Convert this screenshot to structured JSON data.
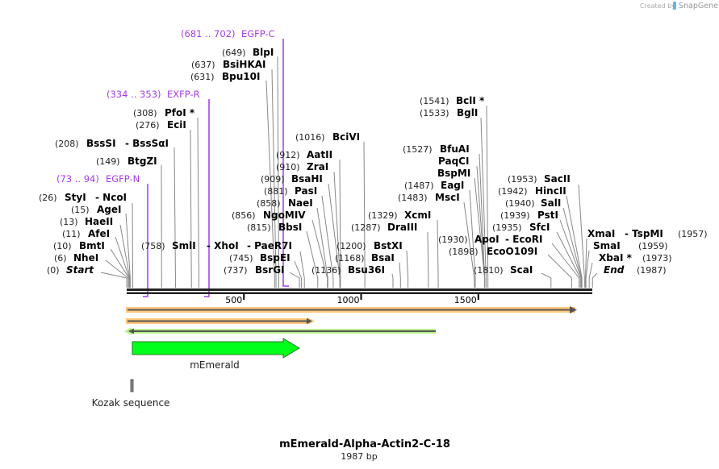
{
  "branding": {
    "created_by": "Created by",
    "brand": "SnapGene"
  },
  "title": "mEmerald-Alpha-Actin2-C-18",
  "length_label": "1987 bp",
  "length_bp": 1987,
  "ruler_ticks": [
    "500",
    "1000",
    "1500"
  ],
  "colors": {
    "primer": "#a43de6",
    "feature_green": "#00ff1a",
    "orange": "#ffc77a",
    "light_green": "#b8f08a",
    "backbone": "#222222"
  },
  "primers": [
    {
      "range": "(73 .. 94)",
      "name": "EGFP-N",
      "start": 73,
      "end": 94
    },
    {
      "range": "(334 .. 353)",
      "name": "EXFP-R",
      "start": 334,
      "end": 353
    },
    {
      "range": "(681 .. 702)",
      "name": "EGFP-C",
      "start": 681,
      "end": 702
    }
  ],
  "features": {
    "mEmerald": "mEmerald",
    "kozak": "Kozak sequence"
  },
  "enzymes": [
    {
      "pos": "(0)",
      "name": "Start",
      "bp": 0
    },
    {
      "pos": "(6)",
      "name": "NheI",
      "bp": 6
    },
    {
      "pos": "(10)",
      "name": "BmtI",
      "bp": 10
    },
    {
      "pos": "(11)",
      "name": "AfeI",
      "bp": 11
    },
    {
      "pos": "(13)",
      "name": "HaeII",
      "bp": 13
    },
    {
      "pos": "(15)",
      "name": "AgeI",
      "bp": 15
    },
    {
      "pos": "(26)",
      "name": "StyI",
      "also": "- NcoI",
      "bp": 26
    },
    {
      "pos": "(149)",
      "name": "BtgZI",
      "bp": 149
    },
    {
      "pos": "(208)",
      "name": "BssSI",
      "also": "- BssSαI",
      "bp": 208
    },
    {
      "pos": "(276)",
      "name": "EciI",
      "bp": 276
    },
    {
      "pos": "(308)",
      "name": "PfoI *",
      "bp": 308
    },
    {
      "pos": "(631)",
      "name": "Bpu10I",
      "bp": 631
    },
    {
      "pos": "(637)",
      "name": "BsiHKAI",
      "bp": 637
    },
    {
      "pos": "(649)",
      "name": "BlpI",
      "bp": 649
    },
    {
      "pos": "(737)",
      "name": "BsrGI",
      "bp": 737
    },
    {
      "pos": "(745)",
      "name": "BspEI",
      "bp": 745
    },
    {
      "pos": "(758)",
      "name": "SmlI",
      "also": "- XhoI",
      "also2": "- PaeR7I",
      "bp": 758
    },
    {
      "pos": "(815)",
      "name": "BbsI",
      "bp": 815
    },
    {
      "pos": "(856)",
      "name": "NgoMIV",
      "bp": 856
    },
    {
      "pos": "(858)",
      "name": "NaeI",
      "bp": 858
    },
    {
      "pos": "(881)",
      "name": "PasI",
      "bp": 881
    },
    {
      "pos": "(909)",
      "name": "BsaHI",
      "bp": 909
    },
    {
      "pos": "(910)",
      "name": "ZraI",
      "bp": 910
    },
    {
      "pos": "(912)",
      "name": "AatII",
      "bp": 912
    },
    {
      "pos": "(1016)",
      "name": "BciVI",
      "bp": 1016
    },
    {
      "pos": "(1136)",
      "name": "Bsu36I",
      "bp": 1136
    },
    {
      "pos": "(1168)",
      "name": "BsaI",
      "bp": 1168
    },
    {
      "pos": "(1200)",
      "name": "BstXI",
      "bp": 1200
    },
    {
      "pos": "(1287)",
      "name": "DraIII",
      "bp": 1287
    },
    {
      "pos": "(1329)",
      "name": "XcmI",
      "bp": 1329
    },
    {
      "pos": "(1483)",
      "name": "MscI",
      "bp": 1483
    },
    {
      "pos": "(1487)",
      "name": "EagI",
      "bp": 1487
    },
    {
      "pos": "",
      "name": "BspMI",
      "bp": 1527
    },
    {
      "pos": "",
      "name": "PaqCI",
      "bp": 1527
    },
    {
      "pos": "(1527)",
      "name": "BfuAI",
      "bp": 1527
    },
    {
      "pos": "(1533)",
      "name": "BglI",
      "bp": 1533
    },
    {
      "pos": "(1541)",
      "name": "BclI *",
      "bp": 1541
    },
    {
      "pos": "(1810)",
      "name": "ScaI",
      "bp": 1810
    },
    {
      "pos": "(1898)",
      "name": "EcoO109I",
      "bp": 1898
    },
    {
      "pos": "(1930)",
      "name": "ApoI",
      "also": "- EcoRI",
      "bp": 1930
    },
    {
      "pos": "(1935)",
      "name": "SfcI",
      "bp": 1935
    },
    {
      "pos": "(1939)",
      "name": "PstI",
      "bp": 1939
    },
    {
      "pos": "(1940)",
      "name": "SalI",
      "bp": 1940
    },
    {
      "pos": "(1942)",
      "name": "HincII",
      "bp": 1942
    },
    {
      "pos": "(1953)",
      "name": "SacII",
      "bp": 1953
    },
    {
      "pos": "(1957)",
      "name": "XmaI",
      "also": "- TspMI",
      "bp": 1957
    },
    {
      "pos": "(1959)",
      "name": "SmaI",
      "bp": 1959
    },
    {
      "pos": "(1973)",
      "name": "XbaI *",
      "bp": 1973
    },
    {
      "pos": "(1987)",
      "name": "End",
      "bp": 1987
    }
  ]
}
